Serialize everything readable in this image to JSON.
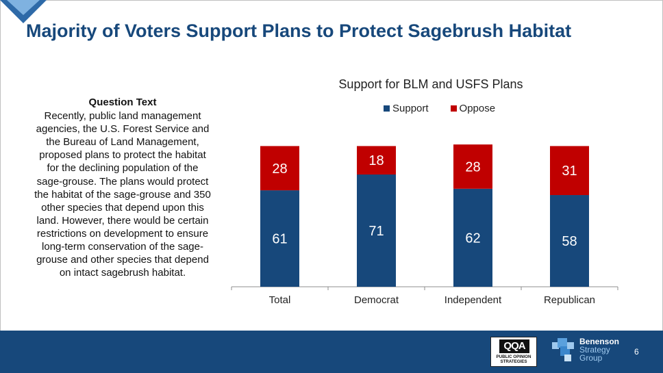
{
  "slide": {
    "title": "Majority of Voters Support Plans to Protect Sagebrush Habitat",
    "page_number": "6"
  },
  "question": {
    "heading": "Question Text",
    "body": "Recently, public land management agencies, the U.S. Forest Service and the Bureau of Land Management, proposed plans to protect the habitat for the declining population of the sage-grouse. The plans would protect the habitat of the sage-grouse and 350 other species that depend upon this land. However, there would be certain restrictions on development to ensure long-term conservation of the sage-grouse and other species that depend on intact sagebrush habitat."
  },
  "logos": {
    "pos_mark": "QQA",
    "pos_line1": "PUBLIC OPINION",
    "pos_line2": "STRATEGIES",
    "bsg_line1": "Benenson",
    "bsg_line2": "Strategy",
    "bsg_line3": "Group"
  },
  "colors": {
    "support": "#17487b",
    "oppose": "#c00000",
    "brand_navy": "#17487b"
  },
  "chart_data": {
    "type": "bar",
    "stacked": true,
    "title": "Support for BLM and USFS Plans",
    "categories": [
      "Total",
      "Democrat",
      "Independent",
      "Republican"
    ],
    "series": [
      {
        "name": "Support",
        "values": [
          61,
          71,
          62,
          58
        ]
      },
      {
        "name": "Oppose",
        "values": [
          28,
          18,
          28,
          31
        ]
      }
    ],
    "legend_position": "top",
    "data_labels": true,
    "grid": false,
    "ylim": [
      0,
      100
    ]
  }
}
